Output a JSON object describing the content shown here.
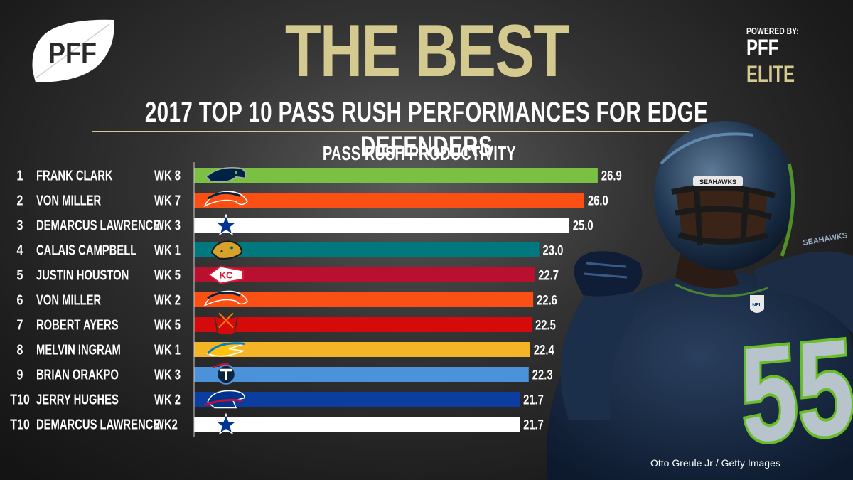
{
  "brand": {
    "logo_text": "PFF",
    "powered_by": "POWERED BY:",
    "powered_pff": "PFF",
    "powered_elite": "ELITE"
  },
  "header": {
    "title": "THE BEST",
    "subtitle": "2017 TOP 10 PASS RUSH PERFORMANCES FOR EDGE DEFENDERS"
  },
  "colors": {
    "gold": "#d4c98e",
    "background": "#2a2a2a",
    "text": "#ffffff"
  },
  "photo": {
    "credit": "Otto Greule Jr / Getty Images",
    "jersey_number": "55",
    "helmet_text": "SEAHAWKS",
    "sleeve_text": "SEAHAWKS",
    "patch_text": "NFL"
  },
  "chart_data": {
    "type": "bar",
    "orientation": "horizontal",
    "title": "PASS RUSH PRODUCTIVITY",
    "xlim": [
      0,
      27
    ],
    "legend": "none",
    "rows": [
      {
        "rank": "1",
        "player": "FRANK CLARK",
        "week": "WK 8",
        "team": "Seahawks",
        "team_icon": "seahawks-logo-icon",
        "value": 26.9,
        "label": "26.9",
        "color": "#7ac143"
      },
      {
        "rank": "2",
        "player": "VON MILLER",
        "week": "WK 7",
        "team": "Broncos",
        "team_icon": "broncos-logo-icon",
        "value": 26.0,
        "label": "26.0",
        "color": "#fb4f14"
      },
      {
        "rank": "3",
        "player": "DEMARCUS LAWRENCE",
        "week": "WK 3",
        "team": "Cowboys",
        "team_icon": "cowboys-logo-icon",
        "value": 25.0,
        "label": "25.0",
        "color": "#ffffff"
      },
      {
        "rank": "4",
        "player": "CALAIS CAMPBELL",
        "week": "WK 1",
        "team": "Jaguars",
        "team_icon": "jaguars-logo-icon",
        "value": 23.0,
        "label": "23.0",
        "color": "#00787e"
      },
      {
        "rank": "5",
        "player": "JUSTIN HOUSTON",
        "week": "WK 5",
        "team": "Chiefs",
        "team_icon": "chiefs-logo-icon",
        "value": 22.7,
        "label": "22.7",
        "color": "#b8102e"
      },
      {
        "rank": "6",
        "player": "VON MILLER",
        "week": "WK 2",
        "team": "Broncos",
        "team_icon": "broncos-logo-icon",
        "value": 22.6,
        "label": "22.6",
        "color": "#fb4f14"
      },
      {
        "rank": "7",
        "player": "ROBERT AYERS",
        "week": "WK 5",
        "team": "Buccaneers",
        "team_icon": "buccaneers-logo-icon",
        "value": 22.5,
        "label": "22.5",
        "color": "#d50a0a"
      },
      {
        "rank": "8",
        "player": "MELVIN INGRAM",
        "week": "WK 1",
        "team": "Chargers",
        "team_icon": "chargers-logo-icon",
        "value": 22.4,
        "label": "22.4",
        "color": "#f3b427"
      },
      {
        "rank": "9",
        "player": "BRIAN ORAKPO",
        "week": "WK 3",
        "team": "Titans",
        "team_icon": "titans-logo-icon",
        "value": 22.3,
        "label": "22.3",
        "color": "#4b92db"
      },
      {
        "rank": "T10",
        "player": "JERRY HUGHES",
        "week": "WK 2",
        "team": "Bills",
        "team_icon": "bills-logo-icon",
        "value": 21.7,
        "label": "21.7",
        "color": "#0c3da0"
      },
      {
        "rank": "T10",
        "player": "DEMARCUS LAWRENCE",
        "week": "WK2",
        "team": "Cowboys",
        "team_icon": "cowboys-logo-icon",
        "value": 21.7,
        "label": "21.7",
        "color": "#ffffff"
      }
    ]
  }
}
